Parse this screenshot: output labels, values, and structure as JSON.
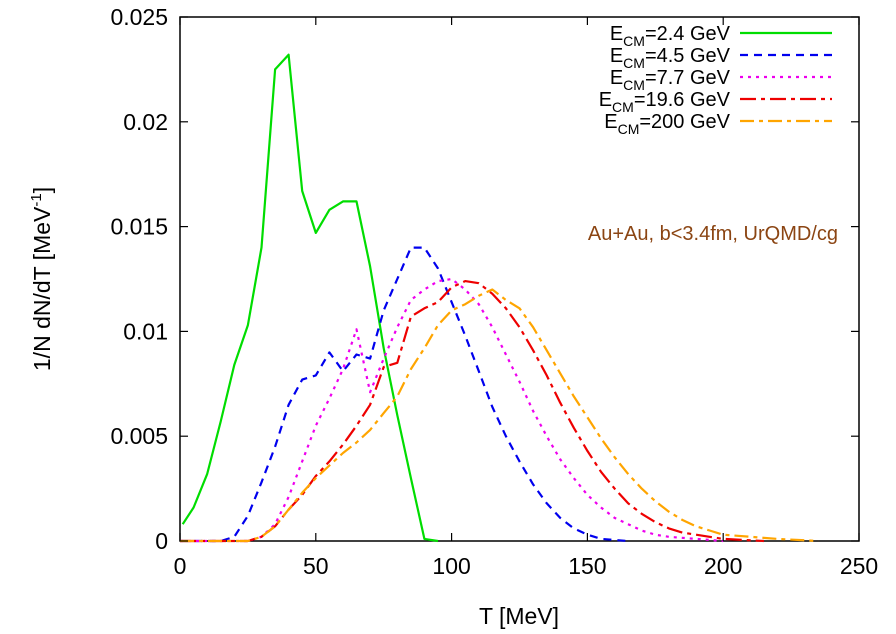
{
  "chart_data": {
    "type": "line",
    "xlabel": "T [MeV]",
    "ylabel_parts": {
      "base": "1/N dN/dT [MeV",
      "sup": "-1",
      "tail": "]"
    },
    "xlim": [
      0,
      250
    ],
    "ylim": [
      0,
      0.025
    ],
    "x_ticks": [
      "0",
      "50",
      "100",
      "150",
      "200",
      "250"
    ],
    "x_tick_values": [
      0,
      50,
      100,
      150,
      200,
      250
    ],
    "y_ticks": [
      "0",
      "0.005",
      "0.01",
      "0.015",
      "0.02",
      "0.025"
    ],
    "y_tick_values": [
      0,
      0.005,
      0.01,
      0.015,
      0.02,
      0.025
    ],
    "grid": false,
    "legend_placement": "top-right",
    "annotation": {
      "text": "Au+Au, b<3.4fm, UrQMD/cg",
      "color": "#8b4513"
    },
    "series": [
      {
        "name": "E_CM=2.4 GeV",
        "legend_main": "E",
        "legend_sub": "CM",
        "legend_rest": "=2.4 GeV",
        "color": "#00dd00",
        "dash": "solid",
        "points": [
          [
            1,
            0.0008
          ],
          [
            5,
            0.0016
          ],
          [
            10,
            0.0032
          ],
          [
            15,
            0.0057
          ],
          [
            20,
            0.0084
          ],
          [
            25,
            0.0103
          ],
          [
            30,
            0.014
          ],
          [
            35,
            0.0225
          ],
          [
            40,
            0.0232
          ],
          [
            45,
            0.0167
          ],
          [
            50,
            0.0147
          ],
          [
            55,
            0.0158
          ],
          [
            60,
            0.0162
          ],
          [
            65,
            0.0162
          ],
          [
            70,
            0.0131
          ],
          [
            75,
            0.0092
          ],
          [
            80,
            0.006
          ],
          [
            85,
            0.003
          ],
          [
            90,
            0.0001
          ],
          [
            95,
            0.0
          ]
        ]
      },
      {
        "name": "E_CM=4.5 GeV",
        "legend_main": "E",
        "legend_sub": "CM",
        "legend_rest": "=4.5 GeV",
        "color": "#0000ee",
        "dash": "8,6",
        "points": [
          [
            0,
            0
          ],
          [
            15,
            0
          ],
          [
            20,
            0.0002
          ],
          [
            25,
            0.0012
          ],
          [
            30,
            0.0028
          ],
          [
            35,
            0.0045
          ],
          [
            40,
            0.0065
          ],
          [
            45,
            0.0077
          ],
          [
            50,
            0.0079
          ],
          [
            55,
            0.009
          ],
          [
            60,
            0.0081
          ],
          [
            65,
            0.0089
          ],
          [
            70,
            0.0087
          ],
          [
            75,
            0.011
          ],
          [
            80,
            0.0125
          ],
          [
            85,
            0.014
          ],
          [
            90,
            0.014
          ],
          [
            95,
            0.013
          ],
          [
            100,
            0.0114
          ],
          [
            105,
            0.0098
          ],
          [
            110,
            0.0081
          ],
          [
            115,
            0.0064
          ],
          [
            120,
            0.005
          ],
          [
            125,
            0.0038
          ],
          [
            130,
            0.0027
          ],
          [
            135,
            0.0018
          ],
          [
            140,
            0.0011
          ],
          [
            145,
            0.0006
          ],
          [
            150,
            0.0003
          ],
          [
            155,
            0.0001
          ],
          [
            165,
            0.0
          ]
        ]
      },
      {
        "name": "E_CM=7.7 GeV",
        "legend_main": "E",
        "legend_sub": "CM",
        "legend_rest": "=7.7 GeV",
        "color": "#ee00ee",
        "dash": "3,5",
        "points": [
          [
            0,
            0
          ],
          [
            25,
            0
          ],
          [
            30,
            0.0002
          ],
          [
            35,
            0.0008
          ],
          [
            40,
            0.0021
          ],
          [
            45,
            0.0038
          ],
          [
            50,
            0.0055
          ],
          [
            55,
            0.0068
          ],
          [
            60,
            0.0082
          ],
          [
            65,
            0.0101
          ],
          [
            70,
            0.0071
          ],
          [
            75,
            0.0087
          ],
          [
            80,
            0.0102
          ],
          [
            85,
            0.0115
          ],
          [
            90,
            0.012
          ],
          [
            95,
            0.0124
          ],
          [
            100,
            0.0125
          ],
          [
            105,
            0.012
          ],
          [
            110,
            0.0113
          ],
          [
            115,
            0.0102
          ],
          [
            120,
            0.0089
          ],
          [
            125,
            0.0076
          ],
          [
            130,
            0.0062
          ],
          [
            135,
            0.005
          ],
          [
            140,
            0.0039
          ],
          [
            145,
            0.003
          ],
          [
            150,
            0.0022
          ],
          [
            155,
            0.0016
          ],
          [
            160,
            0.0011
          ],
          [
            165,
            0.0008
          ],
          [
            170,
            0.0005
          ],
          [
            175,
            0.0003
          ],
          [
            180,
            0.0002
          ],
          [
            190,
            0.0001
          ],
          [
            200,
            0.0
          ]
        ]
      },
      {
        "name": "E_CM=19.6 GeV",
        "legend_main": "E",
        "legend_sub": "CM",
        "legend_rest": "=19.6 GeV",
        "color": "#ee0000",
        "dash": "16,5,4,5",
        "points": [
          [
            0,
            0
          ],
          [
            25,
            0
          ],
          [
            30,
            0.0002
          ],
          [
            35,
            0.0007
          ],
          [
            40,
            0.0015
          ],
          [
            45,
            0.0022
          ],
          [
            50,
            0.0031
          ],
          [
            55,
            0.0038
          ],
          [
            60,
            0.0046
          ],
          [
            65,
            0.0055
          ],
          [
            70,
            0.0065
          ],
          [
            75,
            0.0083
          ],
          [
            80,
            0.0085
          ],
          [
            85,
            0.0107
          ],
          [
            90,
            0.0111
          ],
          [
            95,
            0.0114
          ],
          [
            100,
            0.0121
          ],
          [
            105,
            0.0124
          ],
          [
            110,
            0.0123
          ],
          [
            115,
            0.0118
          ],
          [
            120,
            0.0111
          ],
          [
            125,
            0.0102
          ],
          [
            130,
            0.0091
          ],
          [
            135,
            0.0079
          ],
          [
            140,
            0.0066
          ],
          [
            145,
            0.0054
          ],
          [
            150,
            0.0043
          ],
          [
            155,
            0.0033
          ],
          [
            160,
            0.0025
          ],
          [
            165,
            0.0018
          ],
          [
            170,
            0.0013
          ],
          [
            175,
            0.0009
          ],
          [
            180,
            0.0006
          ],
          [
            185,
            0.0004
          ],
          [
            190,
            0.0003
          ],
          [
            200,
            0.0001
          ],
          [
            215,
            0.0
          ]
        ]
      },
      {
        "name": "E_CM=200 GeV",
        "legend_main": "E",
        "legend_sub": "CM",
        "legend_rest": "=200 GeV",
        "color": "#ffa500",
        "dash": "14,5,4,5",
        "points": [
          [
            0,
            0
          ],
          [
            25,
            0
          ],
          [
            30,
            0.0002
          ],
          [
            35,
            0.0007
          ],
          [
            40,
            0.0015
          ],
          [
            45,
            0.0023
          ],
          [
            50,
            0.003
          ],
          [
            55,
            0.0036
          ],
          [
            60,
            0.0042
          ],
          [
            65,
            0.0047
          ],
          [
            70,
            0.0053
          ],
          [
            75,
            0.0061
          ],
          [
            80,
            0.0069
          ],
          [
            85,
            0.0082
          ],
          [
            90,
            0.0092
          ],
          [
            95,
            0.0103
          ],
          [
            100,
            0.011
          ],
          [
            105,
            0.0113
          ],
          [
            110,
            0.0117
          ],
          [
            115,
            0.012
          ],
          [
            120,
            0.0115
          ],
          [
            125,
            0.0111
          ],
          [
            130,
            0.0102
          ],
          [
            135,
            0.0091
          ],
          [
            140,
            0.008
          ],
          [
            145,
            0.0069
          ],
          [
            150,
            0.0059
          ],
          [
            155,
            0.0049
          ],
          [
            160,
            0.004
          ],
          [
            165,
            0.0032
          ],
          [
            170,
            0.0025
          ],
          [
            175,
            0.0019
          ],
          [
            180,
            0.0014
          ],
          [
            185,
            0.001
          ],
          [
            190,
            0.0007
          ],
          [
            195,
            0.0005
          ],
          [
            200,
            0.0003
          ],
          [
            210,
            0.0002
          ],
          [
            220,
            0.0001
          ],
          [
            235,
            0.0
          ]
        ]
      }
    ]
  }
}
